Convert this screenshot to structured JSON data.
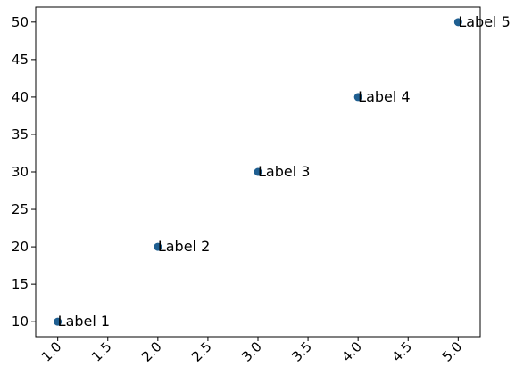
{
  "chart_data": {
    "type": "scatter",
    "title": "",
    "xlabel": "",
    "ylabel": "",
    "xlim": [
      0.78,
      5.22
    ],
    "ylim": [
      8,
      52
    ],
    "grid": false,
    "legend": "none",
    "x_ticks": [
      "1.0",
      "1.5",
      "2.0",
      "2.5",
      "3.0",
      "3.5",
      "4.0",
      "4.5",
      "5.0"
    ],
    "y_ticks": [
      "10",
      "15",
      "20",
      "25",
      "30",
      "35",
      "40",
      "45",
      "50"
    ],
    "x_tick_rotation_deg": 45,
    "marker_color": "#1f5f91",
    "points": [
      {
        "x": 1,
        "y": 10,
        "label": "Label 1"
      },
      {
        "x": 2,
        "y": 20,
        "label": "Label 2"
      },
      {
        "x": 3,
        "y": 30,
        "label": "Label 3"
      },
      {
        "x": 4,
        "y": 40,
        "label": "Label 4"
      },
      {
        "x": 5,
        "y": 50,
        "label": "Label 5"
      }
    ]
  }
}
